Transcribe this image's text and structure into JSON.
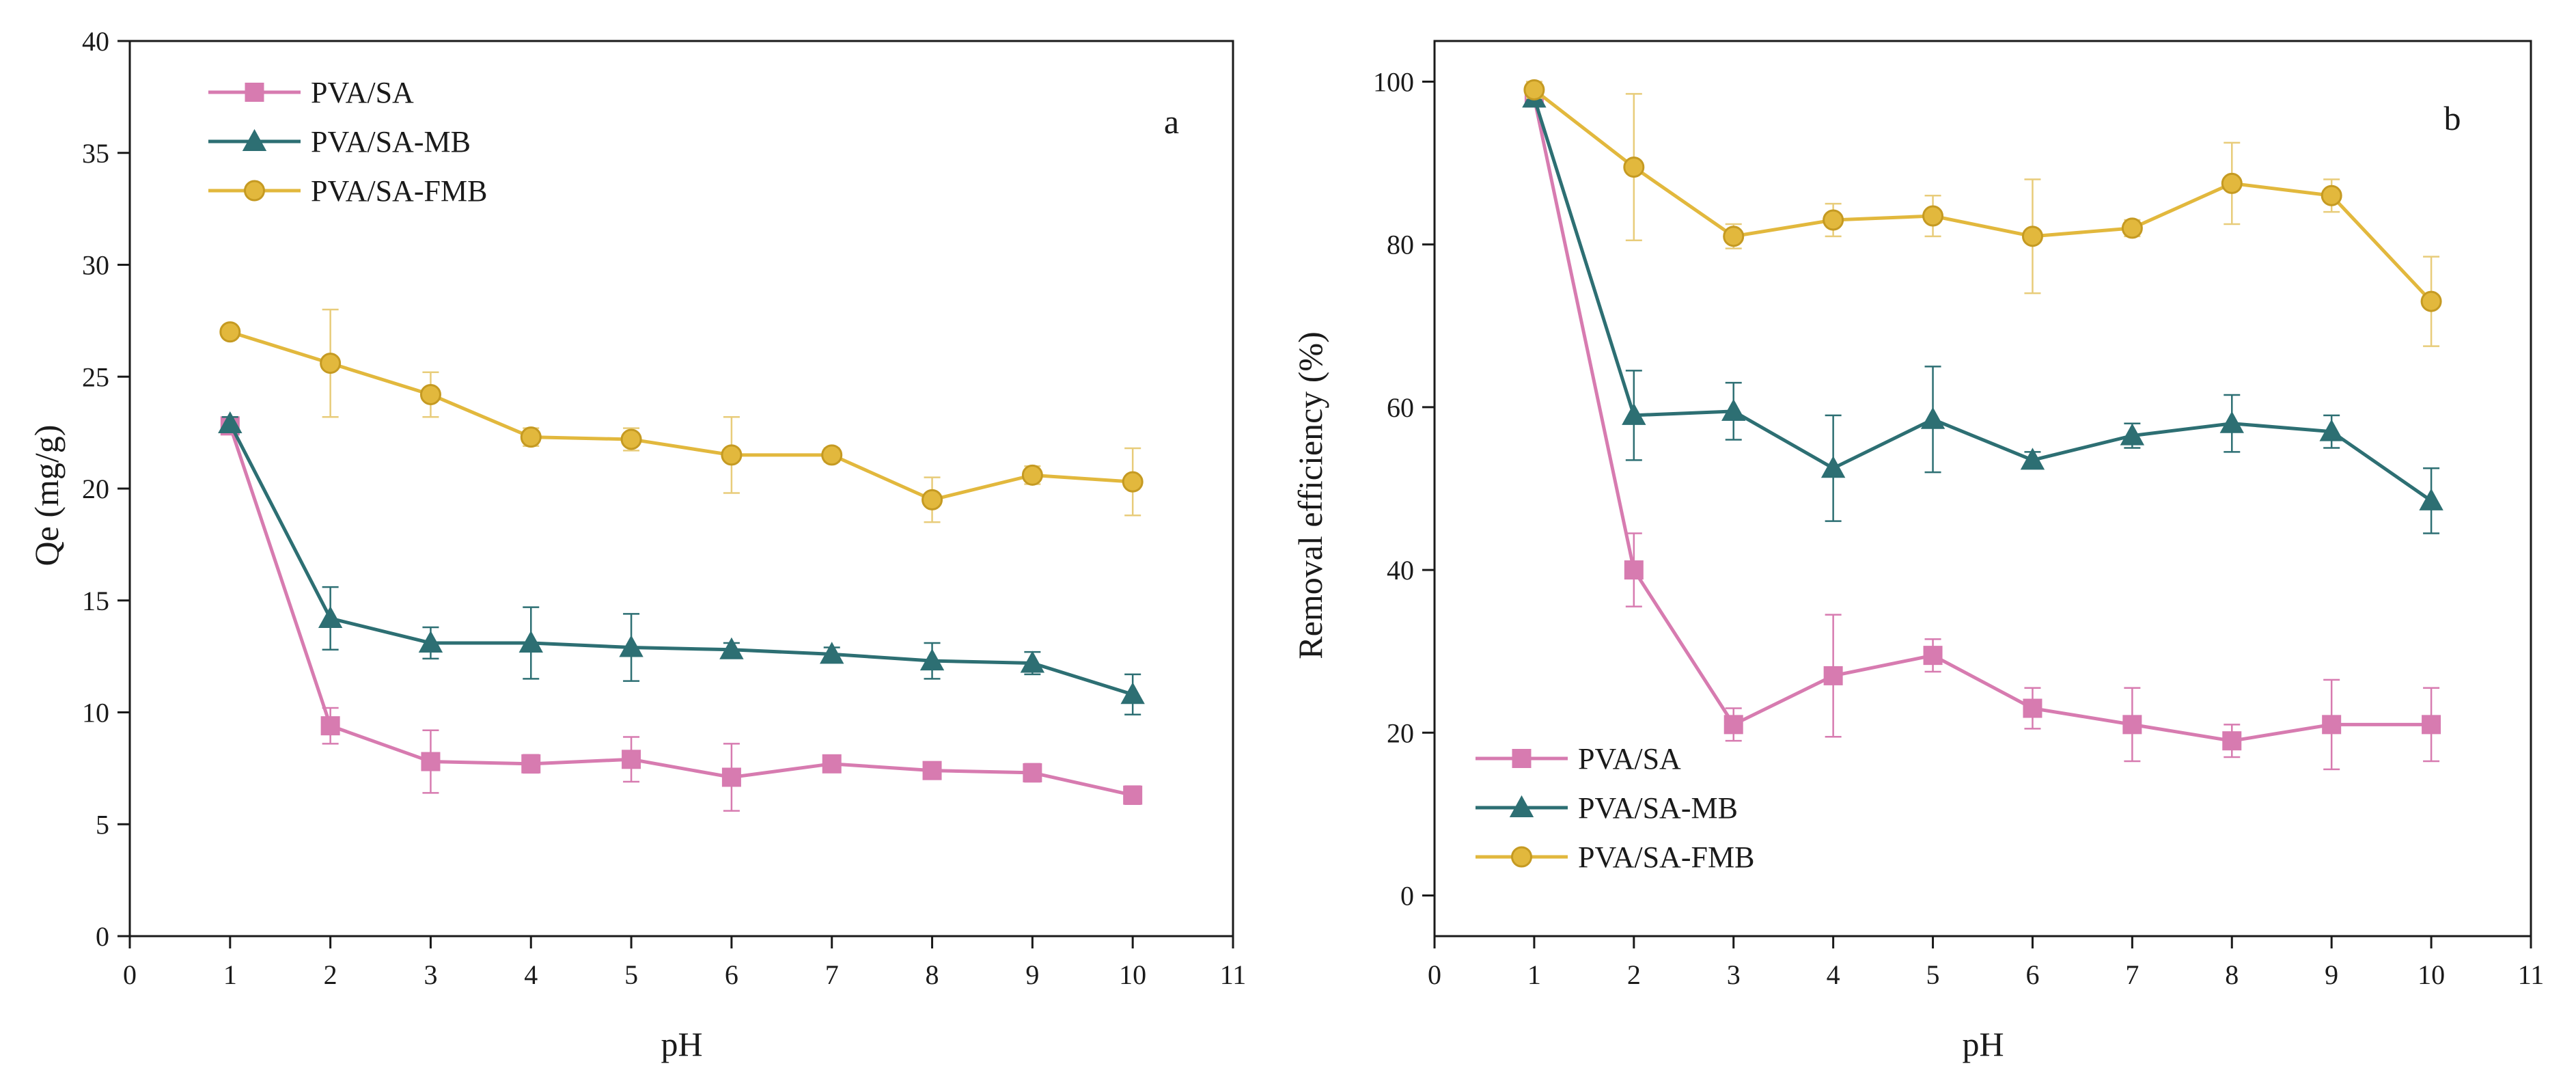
{
  "chart_data": [
    {
      "type": "line",
      "panel_label": "a",
      "xlabel": "pH",
      "ylabel": "Qe (mg/g)",
      "xlim": [
        0,
        11
      ],
      "ylim": [
        0,
        40
      ],
      "x_ticks": [
        0,
        1,
        2,
        3,
        4,
        5,
        6,
        7,
        8,
        9,
        10,
        11
      ],
      "y_ticks": [
        0,
        5,
        10,
        15,
        20,
        25,
        30,
        35,
        40
      ],
      "legend_position": "top-left",
      "grid": false,
      "x": [
        1,
        2,
        3,
        4,
        5,
        6,
        7,
        8,
        9,
        10
      ],
      "series": [
        {
          "name": "PVA/SA",
          "marker": "square",
          "color": "#d77bb0",
          "values": [
            22.8,
            9.4,
            7.8,
            7.7,
            7.9,
            7.1,
            7.7,
            7.4,
            7.3,
            6.3
          ],
          "errors": [
            0.3,
            0.8,
            1.4,
            0.4,
            1.0,
            1.5,
            0.3,
            0.3,
            0.4,
            0.4
          ]
        },
        {
          "name": "PVA/SA-MB",
          "marker": "triangle",
          "color": "#2d6f73",
          "values": [
            22.9,
            14.2,
            13.1,
            13.1,
            12.9,
            12.8,
            12.6,
            12.3,
            12.2,
            10.8
          ],
          "errors": [
            0.3,
            1.4,
            0.7,
            1.6,
            1.5,
            0.3,
            0.3,
            0.8,
            0.5,
            0.9
          ]
        },
        {
          "name": "PVA/SA-FMB",
          "marker": "circle",
          "color": "#e2b83d",
          "values": [
            27.0,
            25.6,
            24.2,
            22.3,
            22.2,
            21.5,
            21.5,
            19.5,
            20.6,
            20.3
          ],
          "errors": [
            0.2,
            2.4,
            1.0,
            0.4,
            0.5,
            1.7,
            0.3,
            1.0,
            0.4,
            1.5
          ]
        }
      ]
    },
    {
      "type": "line",
      "panel_label": "b",
      "xlabel": "pH",
      "ylabel": "Removal efficiency (%)",
      "xlim": [
        0,
        11
      ],
      "ylim": [
        -5,
        105
      ],
      "x_ticks": [
        0,
        1,
        2,
        3,
        4,
        5,
        6,
        7,
        8,
        9,
        10,
        11
      ],
      "y_ticks": [
        0,
        20,
        40,
        60,
        80,
        100
      ],
      "legend_position": "bottom-left",
      "grid": false,
      "x": [
        1,
        2,
        3,
        4,
        5,
        6,
        7,
        8,
        9,
        10
      ],
      "series": [
        {
          "name": "PVA/SA",
          "marker": "square",
          "color": "#d77bb0",
          "values": [
            98,
            40,
            21,
            27,
            29.5,
            23,
            21,
            19,
            21,
            21
          ],
          "errors": [
            1,
            4.5,
            2,
            7.5,
            2,
            2.5,
            4.5,
            2,
            5.5,
            4.5
          ]
        },
        {
          "name": "PVA/SA-MB",
          "marker": "triangle",
          "color": "#2d6f73",
          "values": [
            98,
            59,
            59.5,
            52.5,
            58.5,
            53.5,
            56.5,
            58,
            57,
            48.5
          ],
          "errors": [
            1,
            5.5,
            3.5,
            6.5,
            6.5,
            1,
            1.5,
            3.5,
            2,
            4
          ]
        },
        {
          "name": "PVA/SA-FMB",
          "marker": "circle",
          "color": "#e2b83d",
          "values": [
            99,
            89.5,
            81,
            83,
            83.5,
            81,
            82,
            87.5,
            86,
            73
          ],
          "errors": [
            1,
            9,
            1.5,
            2,
            2.5,
            7,
            1,
            5,
            2,
            5.5
          ]
        }
      ]
    }
  ]
}
